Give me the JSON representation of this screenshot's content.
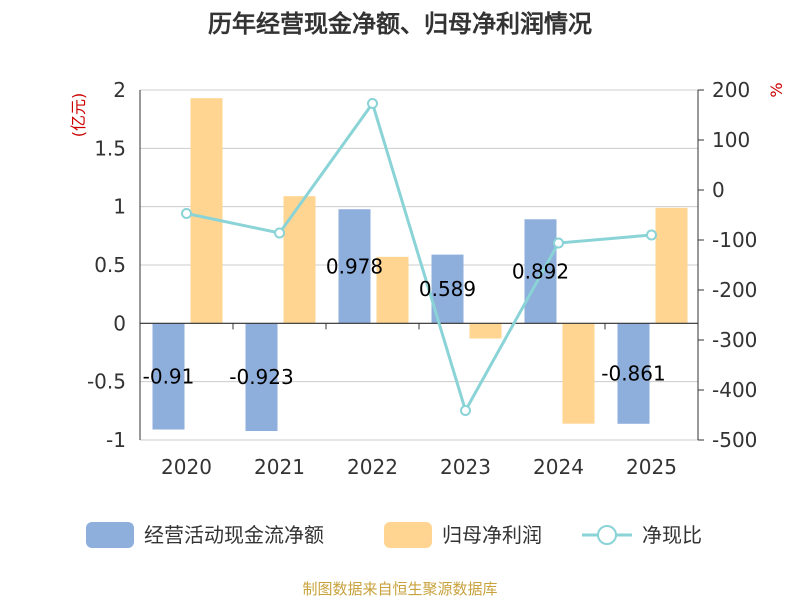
{
  "chart_data": {
    "type": "bar",
    "title": "历年经营现金净额、归母净利润情况",
    "categories": [
      "2020",
      "2021",
      "2022",
      "2023",
      "2024",
      "2025"
    ],
    "series": [
      {
        "name": "经营活动现金流净额",
        "type": "bar",
        "axis": "left",
        "values": [
          -0.91,
          -0.923,
          0.978,
          0.589,
          0.892,
          -0.861
        ],
        "labels": [
          "-0.91",
          "-0.923",
          "0.978",
          "0.589",
          "0.892",
          "-0.861"
        ]
      },
      {
        "name": "归母净利润",
        "type": "bar",
        "axis": "left",
        "values": [
          1.93,
          1.09,
          0.57,
          -0.13,
          -0.86,
          0.99
        ]
      },
      {
        "name": "净现比",
        "type": "line",
        "axis": "right",
        "values": [
          -47,
          -86,
          173,
          -441,
          -106,
          -90
        ]
      }
    ],
    "y_left": {
      "unit": "(亿元)",
      "range": [
        -1,
        2
      ],
      "ticks": [
        2,
        1.5,
        1,
        0.5,
        0,
        -0.5,
        -1
      ],
      "tick_labels": [
        "2",
        "1.5",
        "1",
        "0.5",
        "0",
        "-0.5",
        "-1"
      ]
    },
    "y_right": {
      "unit": "%",
      "range": [
        -500,
        200
      ],
      "ticks": [
        200,
        100,
        0,
        -100,
        -200,
        -300,
        -400,
        -500
      ],
      "tick_labels": [
        "200",
        "100",
        "0",
        "-100",
        "-200",
        "-300",
        "-400",
        "-500"
      ]
    },
    "grid": true,
    "legend_position": "bottom",
    "colors": {
      "cash_flow": "#8eaedc",
      "net_profit": "#ffd591",
      "ratio": "#8ad3d6",
      "unit": "#cc0000",
      "source": "#c8a23c"
    }
  },
  "source": "制图数据来自恒生聚源数据库"
}
